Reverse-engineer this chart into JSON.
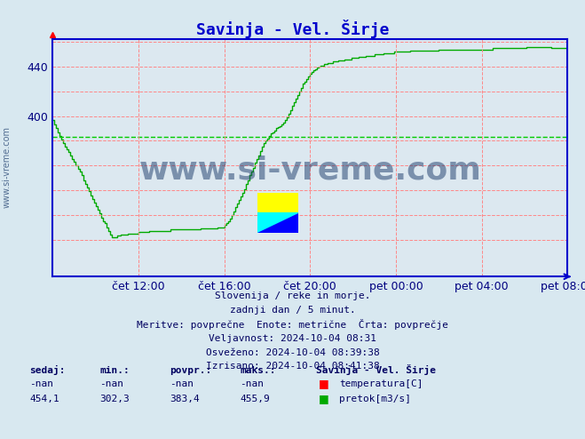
{
  "title": "Savinja - Vel. Širje",
  "title_color": "#0000cc",
  "bg_color": "#d8e8f0",
  "plot_bg_color": "#dce8f0",
  "line_color": "#00aa00",
  "avg_line_color": "#00cc00",
  "avg_value": 383.4,
  "ylim": [
    270,
    462
  ],
  "axis_color": "#0000cc",
  "watermark_text": "www.si-vreme.com",
  "watermark_color": "#1a3a6a",
  "left_text": "www.si-vreme.com",
  "info_lines": [
    "Slovenija / reke in morje.",
    "zadnji dan / 5 minut.",
    "Meritve: povprečne  Enote: metrične  Črta: povprečje",
    "Veljavnost: 2024-10-04 08:31",
    "Osveženo: 2024-10-04 08:39:38",
    "Izrisano: 2024-10-04 08:41:38"
  ],
  "stats_headers": [
    "sedaj:",
    "min.:",
    "povpr.:",
    "maks.:"
  ],
  "stats_row1": [
    "-nan",
    "-nan",
    "-nan",
    "-nan"
  ],
  "stats_row2": [
    "454,1",
    "302,3",
    "383,4",
    "455,9"
  ],
  "legend_station": "Savinja - Vel. Širje",
  "legend_temp_label": "temperatura[C]",
  "legend_flow_label": "pretok[m3/s]",
  "xtick_labels": [
    "čet 12:00",
    "čet 16:00",
    "čet 20:00",
    "pet 00:00",
    "pet 04:00",
    "pet 08:00"
  ],
  "flow_data": [
    397,
    393,
    390,
    387,
    384,
    381,
    378,
    375,
    373,
    371,
    368,
    365,
    363,
    360,
    357,
    355,
    352,
    348,
    345,
    342,
    339,
    336,
    333,
    330,
    327,
    324,
    321,
    318,
    315,
    313,
    310,
    307,
    304,
    302,
    302,
    302,
    303,
    303,
    304,
    304,
    304,
    304,
    305,
    305,
    305,
    305,
    305,
    305,
    306,
    306,
    306,
    306,
    306,
    306,
    307,
    307,
    307,
    307,
    307,
    307,
    307,
    307,
    307,
    307,
    307,
    307,
    308,
    308,
    308,
    308,
    308,
    308,
    308,
    308,
    308,
    308,
    308,
    308,
    308,
    308,
    308,
    308,
    308,
    309,
    309,
    309,
    309,
    309,
    309,
    309,
    309,
    309,
    310,
    310,
    310,
    310,
    312,
    313,
    315,
    317,
    320,
    323,
    326,
    329,
    332,
    335,
    338,
    341,
    345,
    348,
    352,
    355,
    358,
    362,
    365,
    368,
    372,
    375,
    378,
    380,
    382,
    384,
    386,
    387,
    388,
    390,
    391,
    392,
    393,
    395,
    397,
    399,
    402,
    405,
    408,
    411,
    414,
    417,
    420,
    423,
    426,
    428,
    430,
    432,
    434,
    436,
    437,
    438,
    439,
    440,
    441,
    441,
    442,
    442,
    443,
    443,
    443,
    444,
    444,
    444,
    445,
    445,
    445,
    446,
    446,
    446,
    446,
    447,
    447,
    447,
    447,
    448,
    448,
    448,
    448,
    449,
    449,
    449,
    449,
    449,
    450,
    450,
    450,
    450,
    450,
    451,
    451,
    451,
    451,
    451,
    451,
    452,
    452,
    452,
    452,
    452,
    452,
    452,
    452,
    452,
    453,
    453,
    453,
    453,
    453,
    453,
    453,
    453,
    453,
    453,
    453,
    453,
    453,
    453,
    453,
    453,
    454,
    454,
    454,
    454,
    454,
    454,
    454,
    454,
    454,
    454,
    454,
    454,
    454,
    454,
    454,
    454,
    454,
    454,
    454,
    454,
    454,
    454,
    454,
    454,
    454,
    454,
    454,
    454,
    454,
    454,
    455,
    455,
    455,
    455,
    455,
    455,
    455,
    455,
    455,
    455,
    455,
    455,
    455,
    455,
    455,
    455,
    455,
    455,
    455,
    456,
    456,
    456,
    456,
    456,
    456,
    456,
    456,
    456,
    456,
    456,
    456,
    456,
    456,
    455,
    455,
    455,
    455,
    455,
    455,
    455,
    455,
    455,
    455
  ]
}
